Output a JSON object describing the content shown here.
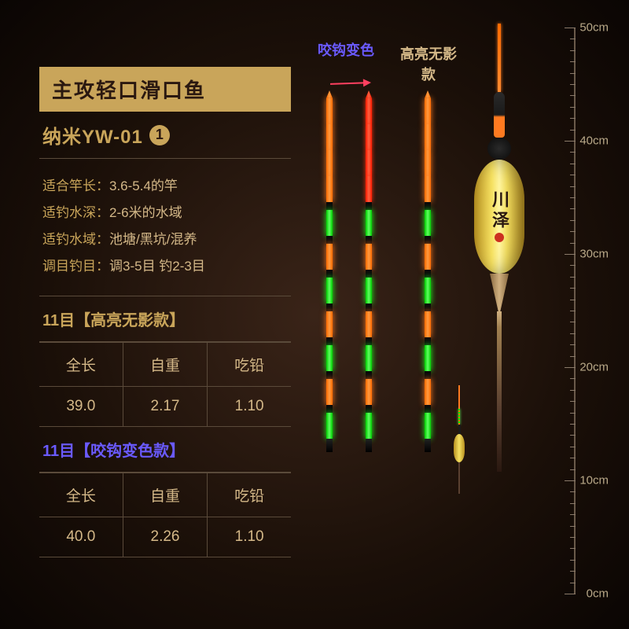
{
  "title": "主攻轻口滑口鱼",
  "model_prefix": "纳米YW-01",
  "model_number": "1",
  "specs": [
    {
      "key": "适合竿长：",
      "val": "3.6-5.4的竿"
    },
    {
      "key": "适钓水深：",
      "val": "2-6米的水域"
    },
    {
      "key": "适钓水域：",
      "val": "池塘/黑坑/混养"
    },
    {
      "key": "调目钓目：",
      "val": "调3-5目 钓2-3目"
    }
  ],
  "variant_a_title": "11目【高亮无影款】",
  "variant_b_title": "11目【咬钩变色款】",
  "columns": [
    "全长",
    "自重",
    "吃铅"
  ],
  "row_a": [
    "39.0",
    "2.17",
    "1.10"
  ],
  "row_b": [
    "40.0",
    "2.26",
    "1.10"
  ],
  "label_bite": "咬钩变色",
  "label_bright": "高亮无影款",
  "brand": "川泽",
  "ruler": {
    "max": 50,
    "step": 10,
    "unit": "cm"
  },
  "stick1_pattern": [
    "o",
    "o",
    "o",
    "o",
    "o",
    "k",
    "g",
    "k",
    "o",
    "k",
    "g",
    "k",
    "o",
    "k",
    "g",
    "k",
    "o",
    "k",
    "g"
  ],
  "stick2_pattern": [
    "r",
    "r",
    "r",
    "r",
    "r",
    "k",
    "g",
    "k",
    "o",
    "k",
    "g",
    "k",
    "o",
    "k",
    "g",
    "k",
    "o",
    "k",
    "g"
  ],
  "stick3_pattern": [
    "o",
    "o",
    "o",
    "o",
    "o",
    "k",
    "g",
    "k",
    "o",
    "k",
    "g",
    "k",
    "o",
    "k",
    "g",
    "k",
    "o",
    "k",
    "g"
  ],
  "colors": {
    "banner_bg": "#c9a55a",
    "accent_blue": "#6a5aff",
    "text_gold": "#d4b888"
  }
}
